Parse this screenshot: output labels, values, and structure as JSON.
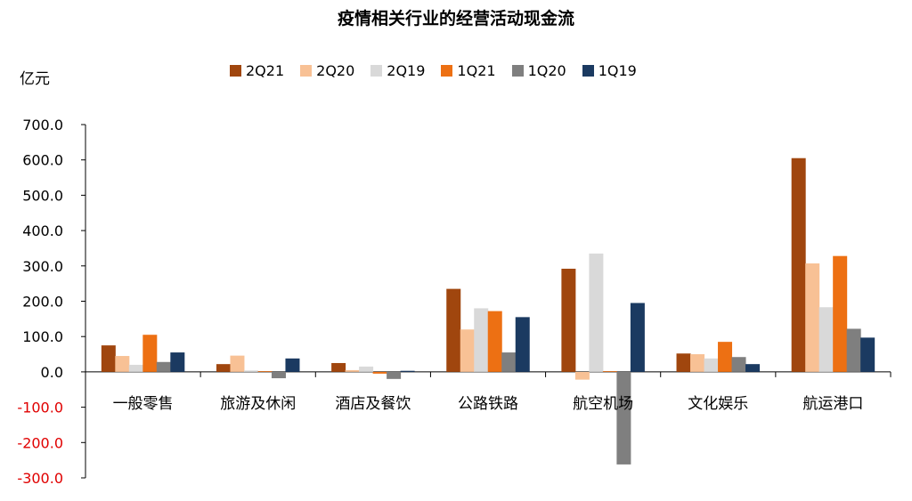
{
  "chart_data": {
    "type": "bar",
    "title": "疫情相关行业的经营活动现金流",
    "ylabel": "亿元",
    "xlabel": "",
    "categories": [
      "一般零售",
      "旅游及休闲",
      "酒店及餐饮",
      "公路铁路",
      "航空机场",
      "文化娱乐",
      "航运港口"
    ],
    "series": [
      {
        "name": "2Q21",
        "color": "#A0460E",
        "values": [
          75,
          22,
          25,
          235,
          292,
          52,
          605
        ]
      },
      {
        "name": "2Q20",
        "color": "#F8C195",
        "values": [
          45,
          46,
          5,
          120,
          -22,
          50,
          307
        ]
      },
      {
        "name": "2Q19",
        "color": "#D9D9D9",
        "values": [
          20,
          4,
          15,
          180,
          335,
          38,
          183
        ]
      },
      {
        "name": "1Q21",
        "color": "#ED7013",
        "values": [
          105,
          2,
          -5,
          172,
          2,
          85,
          328
        ]
      },
      {
        "name": "1Q20",
        "color": "#7F7F7F",
        "values": [
          28,
          -18,
          -20,
          55,
          -262,
          42,
          122
        ]
      },
      {
        "name": "1Q19",
        "color": "#1B3A61",
        "values": [
          55,
          38,
          3,
          155,
          195,
          22,
          97
        ]
      }
    ],
    "ylim": [
      -300,
      700
    ],
    "yticks": [
      "700.0",
      "600.0",
      "500.0",
      "400.0",
      "300.0",
      "200.0",
      "100.0",
      "0.0",
      "-100.0",
      "-200.0",
      "-300.0"
    ],
    "ytick_values": [
      700,
      600,
      500,
      400,
      300,
      200,
      100,
      0,
      -100,
      -200,
      -300
    ],
    "negative_tick_color": "#E00000",
    "legend_position": "top",
    "grid": false
  }
}
